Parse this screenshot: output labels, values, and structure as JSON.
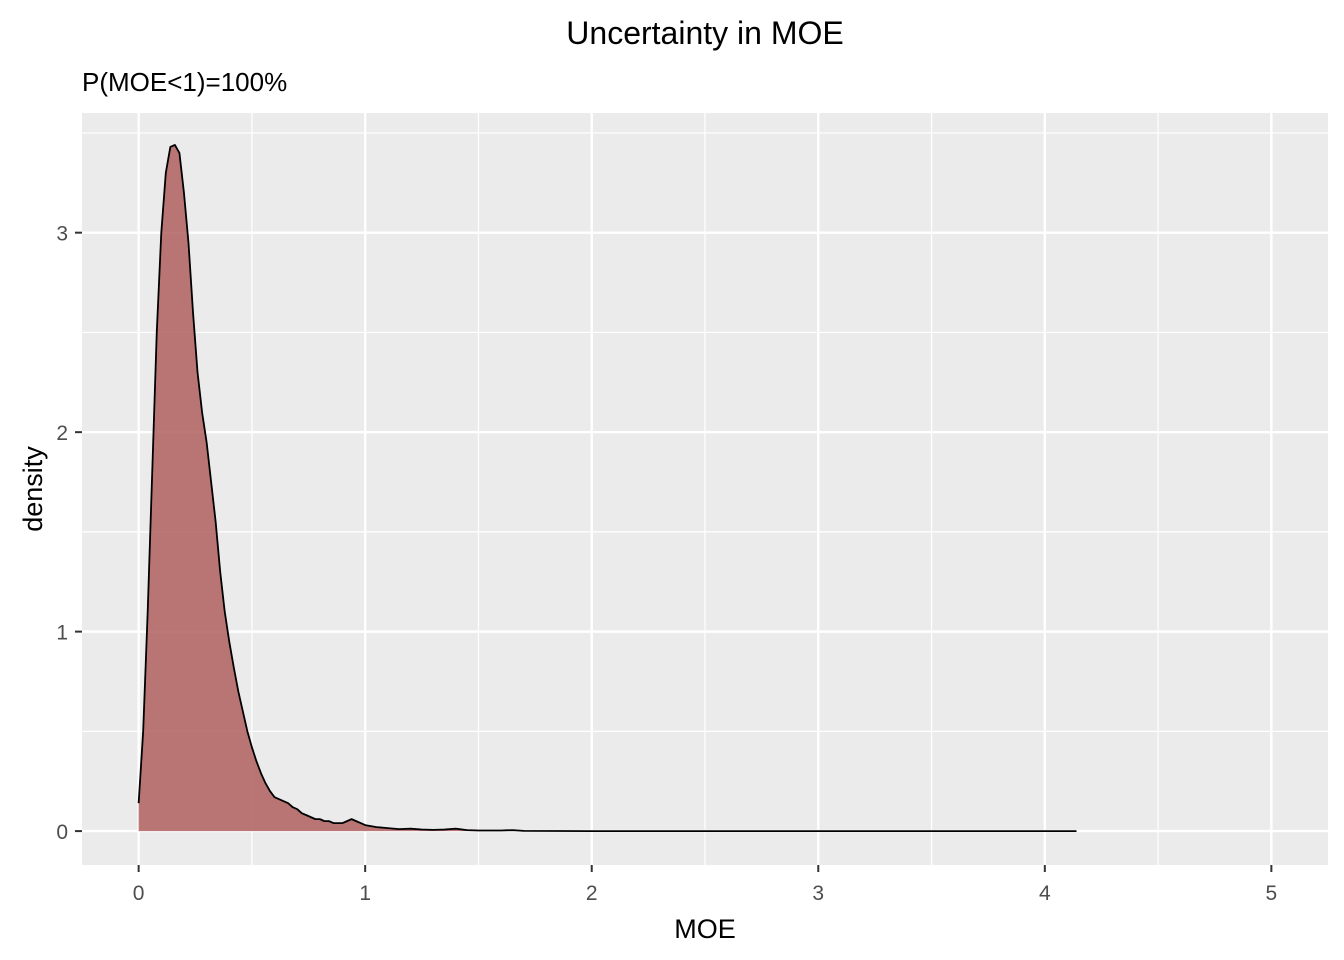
{
  "chart_data": {
    "type": "area",
    "title": "Uncertainty in MOE",
    "subtitle": "P(MOE<1)=100%",
    "xlabel": "MOE",
    "ylabel": "density",
    "xlim": [
      -0.25,
      5.25
    ],
    "ylim": [
      -0.17,
      3.6
    ],
    "x_ticks": [
      0,
      1,
      2,
      3,
      4,
      5
    ],
    "y_ticks": [
      0,
      1,
      2,
      3
    ],
    "x_minor_ticks": [
      0.5,
      1.5,
      2.5,
      3.5,
      4.5
    ],
    "y_minor_ticks": [
      0.5,
      1.5,
      2.5,
      3.5
    ],
    "grid": true,
    "fill_color": "#b0605f",
    "line_color": "#000000",
    "panel_color": "#ebebeb",
    "series": [
      {
        "x": [
          0.0,
          0.02,
          0.04,
          0.06,
          0.08,
          0.1,
          0.12,
          0.14,
          0.16,
          0.18,
          0.19,
          0.2,
          0.22,
          0.24,
          0.26,
          0.28,
          0.3,
          0.32,
          0.34,
          0.36,
          0.38,
          0.4,
          0.42,
          0.44,
          0.46,
          0.48,
          0.5,
          0.52,
          0.54,
          0.56,
          0.58,
          0.6,
          0.62,
          0.64,
          0.66,
          0.68,
          0.7,
          0.72,
          0.74,
          0.76,
          0.78,
          0.8,
          0.82,
          0.84,
          0.86,
          0.88,
          0.9,
          0.92,
          0.94,
          0.96,
          0.98,
          1.0,
          1.05,
          1.1,
          1.15,
          1.2,
          1.25,
          1.3,
          1.35,
          1.4,
          1.45,
          1.5,
          1.6,
          1.65,
          1.7,
          2.0,
          2.5,
          3.0,
          3.5,
          4.0,
          4.14
        ],
        "y": [
          0.14,
          0.5,
          1.1,
          1.8,
          2.5,
          3.0,
          3.3,
          3.43,
          3.44,
          3.4,
          3.3,
          3.2,
          2.95,
          2.6,
          2.3,
          2.1,
          1.95,
          1.75,
          1.55,
          1.3,
          1.1,
          0.95,
          0.82,
          0.7,
          0.6,
          0.5,
          0.42,
          0.35,
          0.29,
          0.24,
          0.2,
          0.17,
          0.16,
          0.15,
          0.14,
          0.12,
          0.11,
          0.09,
          0.08,
          0.07,
          0.06,
          0.06,
          0.05,
          0.05,
          0.04,
          0.04,
          0.04,
          0.05,
          0.06,
          0.05,
          0.04,
          0.03,
          0.02,
          0.015,
          0.01,
          0.012,
          0.008,
          0.006,
          0.008,
          0.012,
          0.005,
          0.003,
          0.003,
          0.005,
          0.001,
          0.0,
          0.0,
          0.0,
          0.0,
          0.0,
          0.0
        ]
      }
    ]
  }
}
